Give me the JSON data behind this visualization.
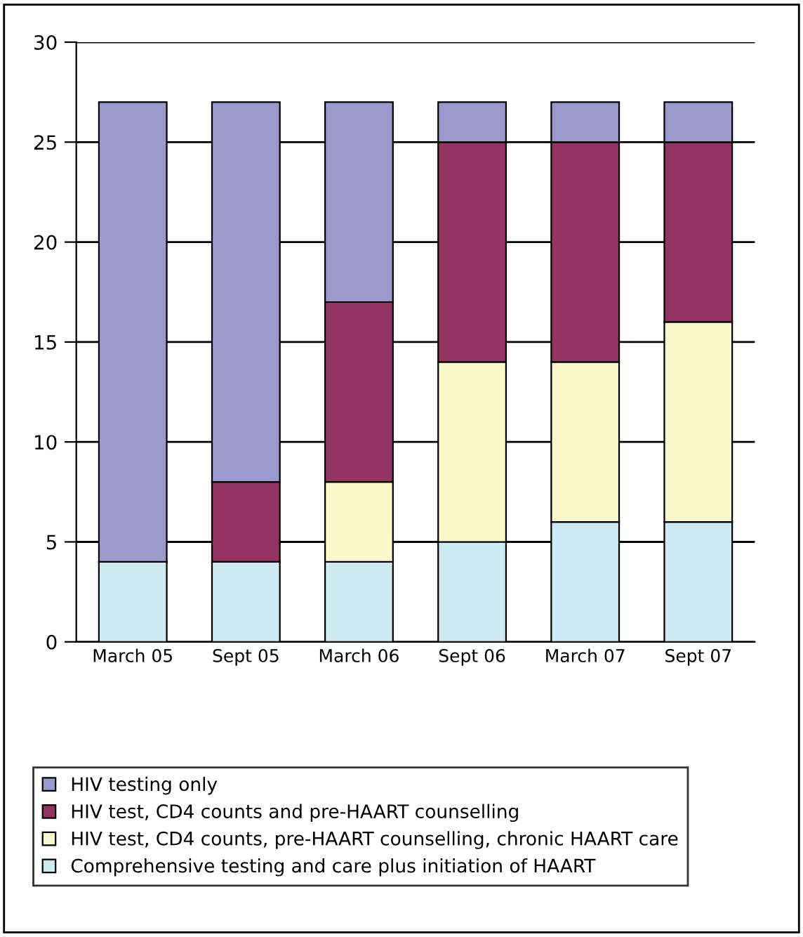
{
  "chart_data": {
    "type": "bar",
    "stacked": true,
    "categories": [
      "March 05",
      "Sept 05",
      "March 06",
      "Sept 06",
      "March 07",
      "Sept 07"
    ],
    "series": [
      {
        "name": "Comprehensive testing and care plus initiation of HAART",
        "color": "#cdeaf2",
        "values": [
          4,
          4,
          4,
          5,
          6,
          6
        ]
      },
      {
        "name": "HIV test, CD4 counts, pre-HAART counselling, chronic HAART care",
        "color": "#fbf8cb",
        "values": [
          0,
          0,
          4,
          9,
          8,
          10
        ]
      },
      {
        "name": "HIV test, CD4 counts and pre-HAART counselling",
        "color": "#943463",
        "values": [
          0,
          4,
          9,
          11,
          11,
          9
        ]
      },
      {
        "name": "HIV testing only",
        "color": "#9999cc",
        "values": [
          23,
          19,
          10,
          2,
          2,
          2
        ]
      }
    ],
    "ylim": [
      0,
      30
    ],
    "yticks": [
      0,
      5,
      10,
      15,
      20,
      25,
      30
    ],
    "grid": "y",
    "legend": "bottom"
  }
}
